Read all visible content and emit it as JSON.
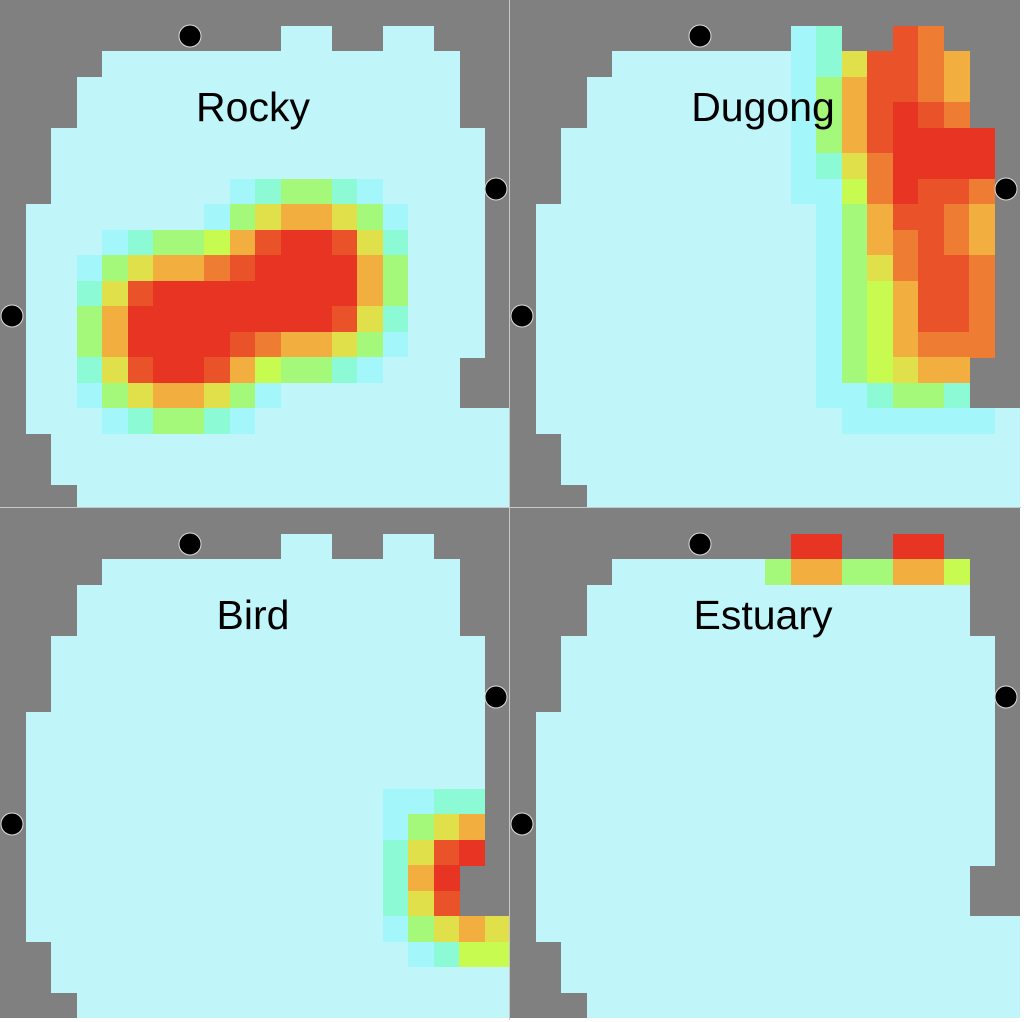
{
  "chart_data": {
    "type": "heatmap",
    "grid_size": [
      20,
      20
    ],
    "colors": {
      "masked": "#808080",
      "levels": [
        "#c0f6fa",
        "#a3f6fa",
        "#8dfad6",
        "#a5f97a",
        "#c7fb4f",
        "#e0e04a",
        "#f2ae3f",
        "#ee7c33",
        "#ea5229",
        "#e83422"
      ]
    },
    "mask": [
      "####################",
      "###########..##..###",
      "####..............##",
      "###...............##",
      "###...............##",
      "##.................#",
      "##.................#",
      "##.................#",
      "#..................#",
      "#..................#",
      "#..................#",
      "#..................#",
      "#..................#",
      "#..................#",
      "#.................##",
      "#.................##",
      "#...................",
      "##..................",
      "##..................",
      "###................."
    ],
    "panels": [
      {
        "title": "Rocky",
        "heat": [
          "00000000000000000000",
          "00000000000000000000",
          "00000000000000000000",
          "00000000000000000000",
          "00000000000000000000",
          "00000000000000000000",
          "00000000000000000000",
          "00000000012332100000",
          "00000000135665310000",
          "00001233468998520000",
          "00013566789999630000",
          "00025899999999630000",
          "00036999999998520000",
          "00036999987665310000",
          "00025899864332100000",
          "00013566531000000000",
          "00001233210000000000",
          "00000000000000000000",
          "00000000000000000000",
          "00000000000000000000"
        ]
      },
      {
        "title": "Dugong",
        "heat": [
          "00000000000000000000",
          "00000000000120087000",
          "00000000000125887600",
          "00000000000136887600",
          "00000000000136898700",
          "00000000000136899990",
          "00000000000125799990",
          "00000000000114798870",
          "00000000000013688760",
          "00000000000013678760",
          "00000000000013578870",
          "00000000000013468870",
          "00000000000013468870",
          "00000000000013467770",
          "00000000000013456600",
          "00000000000011233200",
          "00000000000001111110",
          "00000000000000000000",
          "00000000000000000000",
          "00000000000000000000"
        ]
      },
      {
        "title": "Bird",
        "heat": [
          "00000000000000000000",
          "00000000000000000000",
          "00000000000000000000",
          "00000000000000000000",
          "00000000000000000000",
          "00000000000000000000",
          "00000000000000000000",
          "00000000000000000000",
          "00000000000000000000",
          "00000000000000000000",
          "00000000000000000000",
          "00000000000000011220",
          "00000000000000013560",
          "00000000000000025890",
          "00000000000000026900",
          "00000000000000025800",
          "00000000000000013565",
          "00000000000000001244",
          "00000000000000000000",
          "00000000000000000000"
        ]
      },
      {
        "title": "Estuary",
        "heat": [
          "00000000000000000000",
          "00000000000990099000",
          "00000000003663366400",
          "00000000000000000000",
          "00000000000000000000",
          "00000000000000000000",
          "00000000000000000000",
          "00000000000000000000",
          "00000000000000000000",
          "00000000000000000000",
          "00000000000000000000",
          "00000000000000000000",
          "00000000000000000000",
          "00000000000000000000",
          "00000000000000000000",
          "00000000000000000000",
          "00000000000000000000",
          "00000000000000000000",
          "00000000000000000000",
          "00000000000000000000"
        ]
      }
    ],
    "markers": [
      "marker-top",
      "marker-right",
      "marker-left"
    ]
  }
}
